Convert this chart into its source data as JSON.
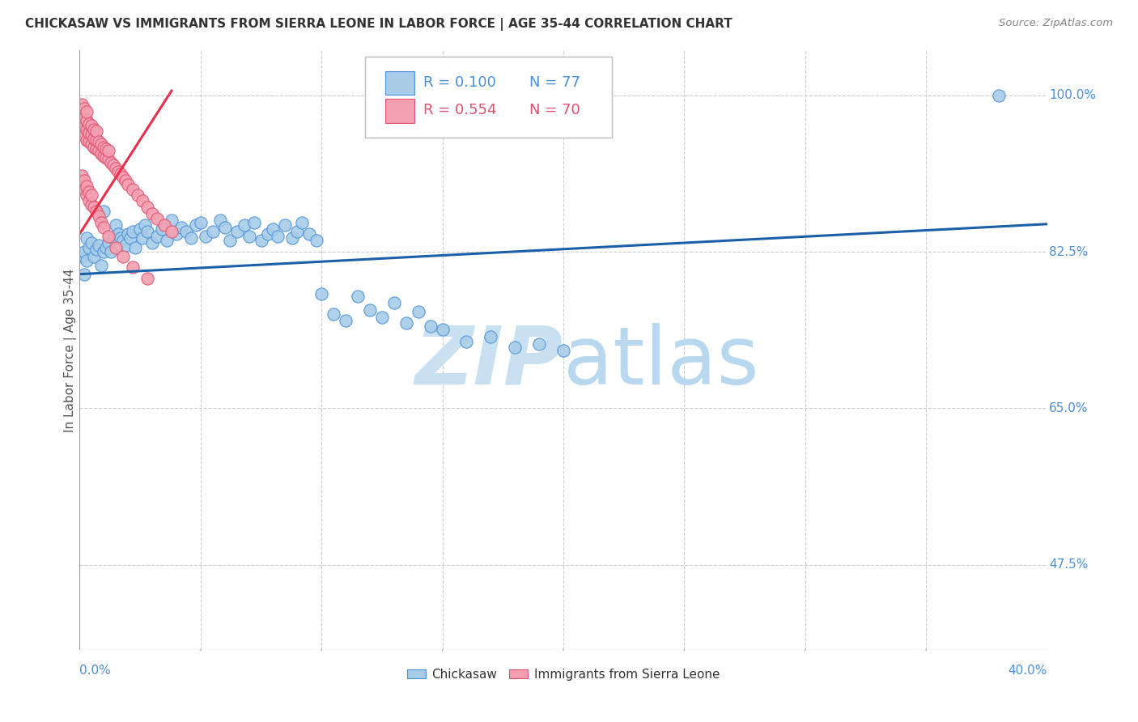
{
  "title": "CHICKASAW VS IMMIGRANTS FROM SIERRA LEONE IN LABOR FORCE | AGE 35-44 CORRELATION CHART",
  "source": "Source: ZipAtlas.com",
  "ylabel": "In Labor Force | Age 35-44",
  "ytick_labels": [
    "100.0%",
    "82.5%",
    "65.0%",
    "47.5%"
  ],
  "ytick_values": [
    1.0,
    0.825,
    0.65,
    0.475
  ],
  "xmin": 0.0,
  "xmax": 0.4,
  "ymin": 0.38,
  "ymax": 1.05,
  "legend_R_blue": "R = 0.100",
  "legend_N_blue": "N = 77",
  "legend_R_pink": "R = 0.554",
  "legend_N_pink": "N = 70",
  "color_blue": "#A8CCE8",
  "color_pink": "#F4A0B0",
  "color_blue_text": "#4A90D9",
  "color_pink_text": "#E05070",
  "trendline_blue_color": "#1A5FA8",
  "trendline_pink_color": "#E8304A",
  "watermark_color": "#C8E0F0",
  "trendline_blue_x0": 0.0,
  "trendline_blue_y0": 0.8,
  "trendline_blue_x1": 0.4,
  "trendline_blue_y1": 0.856,
  "trendline_pink_x0": 0.0,
  "trendline_pink_y0": 0.845,
  "trendline_pink_x1": 0.038,
  "trendline_pink_y1": 1.005,
  "blue_scatter_x": [
    0.001,
    0.002,
    0.002,
    0.003,
    0.003,
    0.004,
    0.005,
    0.006,
    0.007,
    0.008,
    0.009,
    0.01,
    0.01,
    0.011,
    0.012,
    0.013,
    0.014,
    0.015,
    0.016,
    0.017,
    0.018,
    0.019,
    0.02,
    0.021,
    0.022,
    0.023,
    0.025,
    0.026,
    0.027,
    0.028,
    0.03,
    0.032,
    0.034,
    0.036,
    0.038,
    0.04,
    0.042,
    0.044,
    0.046,
    0.048,
    0.05,
    0.052,
    0.055,
    0.058,
    0.06,
    0.062,
    0.065,
    0.068,
    0.07,
    0.072,
    0.075,
    0.078,
    0.08,
    0.082,
    0.085,
    0.088,
    0.09,
    0.092,
    0.095,
    0.098,
    0.1,
    0.105,
    0.11,
    0.115,
    0.12,
    0.125,
    0.13,
    0.135,
    0.14,
    0.145,
    0.15,
    0.16,
    0.17,
    0.18,
    0.19,
    0.2,
    0.38
  ],
  "blue_scatter_y": [
    0.82,
    0.825,
    0.8,
    0.815,
    0.84,
    0.83,
    0.835,
    0.82,
    0.828,
    0.832,
    0.81,
    0.825,
    0.87,
    0.83,
    0.835,
    0.825,
    0.84,
    0.855,
    0.845,
    0.84,
    0.838,
    0.832,
    0.845,
    0.84,
    0.848,
    0.83,
    0.85,
    0.84,
    0.855,
    0.848,
    0.835,
    0.842,
    0.85,
    0.838,
    0.86,
    0.845,
    0.852,
    0.848,
    0.84,
    0.855,
    0.858,
    0.842,
    0.848,
    0.86,
    0.852,
    0.838,
    0.848,
    0.855,
    0.842,
    0.858,
    0.838,
    0.845,
    0.85,
    0.842,
    0.855,
    0.84,
    0.848,
    0.858,
    0.845,
    0.838,
    0.778,
    0.755,
    0.748,
    0.775,
    0.76,
    0.752,
    0.768,
    0.745,
    0.758,
    0.742,
    0.738,
    0.725,
    0.73,
    0.718,
    0.722,
    0.715,
    1.0
  ],
  "pink_scatter_x": [
    0.001,
    0.001,
    0.001,
    0.001,
    0.002,
    0.002,
    0.002,
    0.002,
    0.003,
    0.003,
    0.003,
    0.003,
    0.004,
    0.004,
    0.004,
    0.005,
    0.005,
    0.005,
    0.006,
    0.006,
    0.006,
    0.007,
    0.007,
    0.007,
    0.008,
    0.008,
    0.009,
    0.009,
    0.01,
    0.01,
    0.011,
    0.011,
    0.012,
    0.012,
    0.013,
    0.014,
    0.015,
    0.016,
    0.017,
    0.018,
    0.019,
    0.02,
    0.022,
    0.024,
    0.026,
    0.028,
    0.03,
    0.032,
    0.035,
    0.038,
    0.001,
    0.001,
    0.002,
    0.002,
    0.003,
    0.003,
    0.004,
    0.004,
    0.005,
    0.005,
    0.006,
    0.007,
    0.008,
    0.009,
    0.01,
    0.012,
    0.015,
    0.018,
    0.022,
    0.028
  ],
  "pink_scatter_y": [
    0.96,
    0.97,
    0.98,
    0.99,
    0.955,
    0.965,
    0.975,
    0.985,
    0.95,
    0.962,
    0.972,
    0.982,
    0.948,
    0.958,
    0.968,
    0.945,
    0.956,
    0.966,
    0.942,
    0.952,
    0.962,
    0.94,
    0.95,
    0.96,
    0.938,
    0.948,
    0.935,
    0.945,
    0.932,
    0.942,
    0.93,
    0.94,
    0.928,
    0.938,
    0.925,
    0.922,
    0.918,
    0.915,
    0.912,
    0.908,
    0.905,
    0.9,
    0.895,
    0.888,
    0.882,
    0.875,
    0.868,
    0.862,
    0.855,
    0.848,
    0.9,
    0.91,
    0.895,
    0.905,
    0.888,
    0.898,
    0.882,
    0.892,
    0.878,
    0.888,
    0.875,
    0.87,
    0.865,
    0.858,
    0.852,
    0.842,
    0.83,
    0.82,
    0.808,
    0.795
  ]
}
